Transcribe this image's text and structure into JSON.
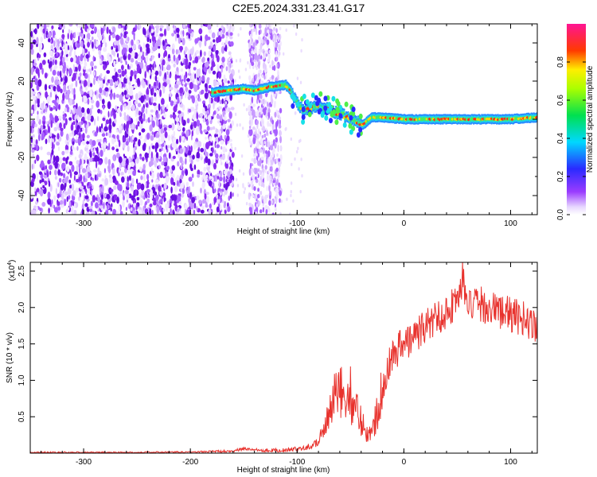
{
  "title": "C2E5.2024.331.23.41.G17",
  "colors": {
    "trace": "#e8322d",
    "axis": "#000000"
  },
  "chart_data": [
    {
      "type": "heatmap",
      "xlabel": "Height of straight line (km)",
      "ylabel": "Frequency (Hz)",
      "xlim": [
        -350,
        125
      ],
      "ylim": [
        -50,
        50
      ],
      "xticks": [
        -300,
        -200,
        -100,
        0,
        100
      ],
      "yticks": [
        -40,
        -20,
        0,
        20,
        40
      ],
      "colorbar": {
        "label": "Normalized spectral amplitude",
        "range": [
          0.0,
          1.0
        ],
        "ticks": [
          "0.0",
          "0.2",
          "0.4",
          "0.6",
          "0.8"
        ],
        "colormap": "rainbow (white-violet-blue-cyan-green-yellow-red-magenta)"
      },
      "ridge": {
        "x": [
          -180,
          -150,
          -140,
          -125,
          -110,
          -100,
          -95,
          -80,
          -60,
          -45,
          -38,
          -30,
          -20,
          0,
          50,
          100,
          125
        ],
        "frequency": [
          14,
          16,
          15,
          17,
          18,
          9,
          5,
          7,
          3,
          -1,
          -3,
          1,
          1,
          0,
          0,
          0,
          1
        ]
      },
      "noise_region": {
        "x_range": [
          -350,
          -170
        ],
        "frequency_range": [
          -50,
          50
        ]
      }
    },
    {
      "type": "line",
      "xlabel": "Height of straight line (km)",
      "ylabel": "SNR (10 * v/v)",
      "scale_label": "(x10",
      "scale_exp": "4",
      "xlim": [
        -350,
        125
      ],
      "ylim": [
        0,
        2.62
      ],
      "xticks": [
        -300,
        -200,
        -100,
        0,
        100
      ],
      "yticks": [
        "0.5",
        "1.0",
        "1.5",
        "2.0",
        "2.5"
      ],
      "series": [
        {
          "x": [
            -350,
            -300,
            -250,
            -200,
            -160,
            -150,
            -130,
            -110,
            -100,
            -85,
            -75,
            -70,
            -65,
            -60,
            -55,
            -50,
            -45,
            -40,
            -35,
            -30,
            -25,
            -20,
            -15,
            -10,
            -5,
            0,
            10,
            20,
            30,
            40,
            50,
            55,
            60,
            70,
            80,
            90,
            100,
            110,
            120,
            125
          ],
          "y": [
            0.01,
            0.01,
            0.01,
            0.015,
            0.03,
            0.06,
            0.04,
            0.04,
            0.06,
            0.1,
            0.3,
            0.5,
            0.75,
            0.8,
            0.85,
            0.8,
            0.6,
            0.45,
            0.3,
            0.25,
            0.6,
            0.95,
            1.2,
            1.35,
            1.45,
            1.5,
            1.6,
            1.75,
            1.85,
            1.95,
            2.1,
            2.4,
            2.0,
            2.05,
            2.0,
            1.95,
            1.9,
            1.85,
            1.8,
            1.75
          ]
        }
      ]
    }
  ]
}
